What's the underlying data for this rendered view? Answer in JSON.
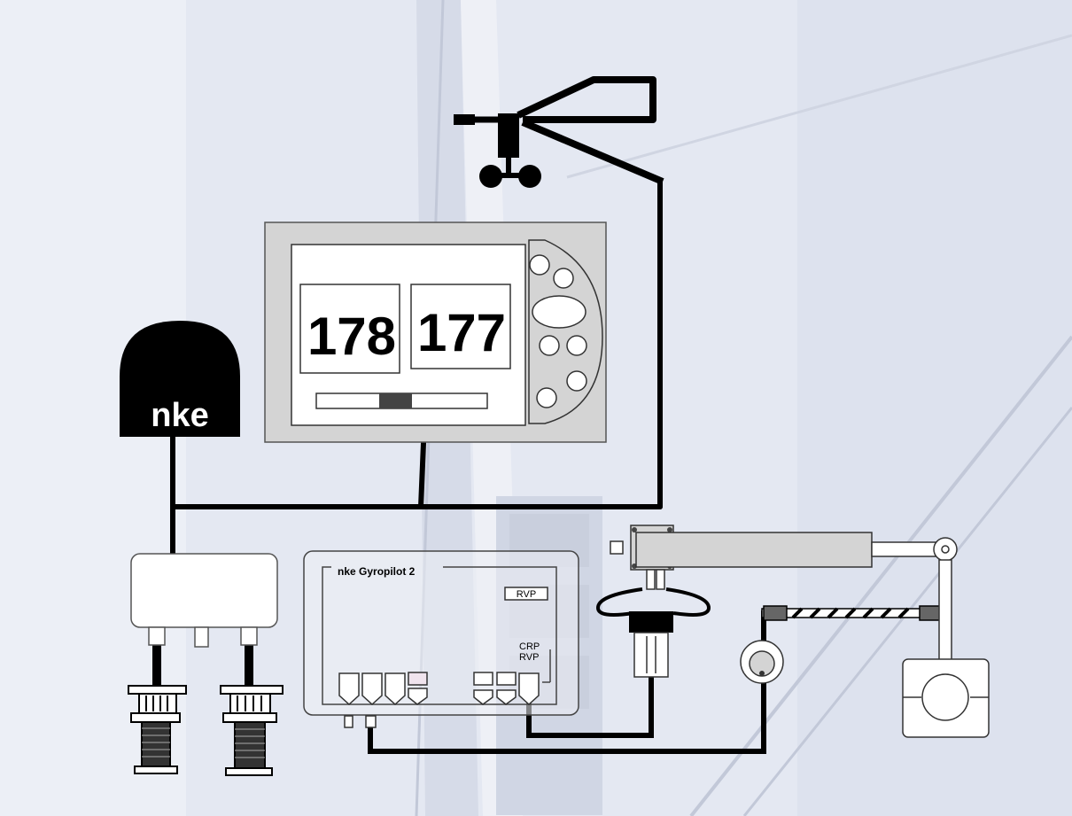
{
  "display": {
    "left_value": "178",
    "right_value": "177"
  },
  "gps_antenna": {
    "brand_label": "nke"
  },
  "autopilot": {
    "title": "nke Gyropilot 2",
    "badge_label": "RVP",
    "mode_labels": [
      "CRP",
      "RVP"
    ]
  },
  "colors": {
    "background": "#e4e8f2",
    "line": "#000000",
    "device_fill": "#d4d4d4",
    "screen_fill": "#ffffff",
    "slider_thumb": "#444444"
  }
}
